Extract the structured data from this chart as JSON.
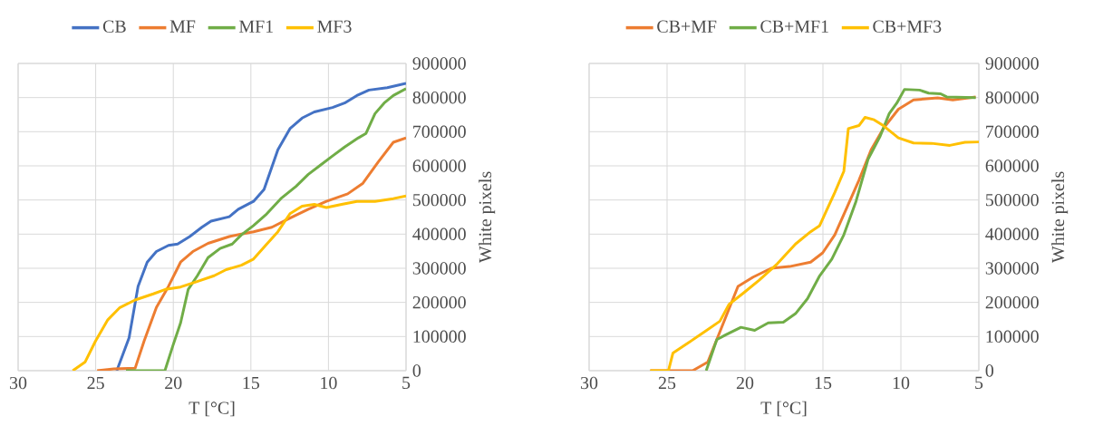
{
  "chart_data": [
    {
      "type": "line",
      "xlabel": "T [°C]",
      "ylabel": "White pixels",
      "xlim": [
        30,
        5
      ],
      "ylim": [
        0,
        900000
      ],
      "xticks": [
        30,
        25,
        20,
        15,
        10,
        5
      ],
      "yticks": [
        0,
        100000,
        200000,
        300000,
        400000,
        500000,
        600000,
        700000,
        800000,
        900000
      ],
      "grid": true,
      "legend": "top",
      "series": [
        {
          "name": "CB",
          "color": "#4472c4",
          "x": [
            23.64,
            22.85,
            22.27,
            21.68,
            21.09,
            20.31,
            19.72,
            18.94,
            18.16,
            17.57,
            16.39,
            15.81,
            14.83,
            14.15,
            13.26,
            12.48,
            11.7,
            10.91,
            9.74,
            8.96,
            8.17,
            7.39,
            6.21,
            5
          ],
          "values": [
            0,
            96000,
            247000,
            318000,
            349000,
            367000,
            371000,
            393000,
            420000,
            438000,
            451000,
            473000,
            496000,
            531000,
            647000,
            709000,
            740000,
            758000,
            771000,
            784000,
            806000,
            822000,
            829000,
            842000
          ]
        },
        {
          "name": "MF",
          "color": "#ed7d31",
          "x": [
            24.91,
            23.83,
            22.46,
            21.88,
            21.09,
            20.31,
            19.53,
            18.74,
            17.76,
            16.39,
            15.61,
            14.83,
            13.65,
            12.48,
            11.3,
            10.13,
            8.76,
            7.78,
            6.8,
            5.82,
            5
          ],
          "values": [
            0,
            5000,
            7000,
            87000,
            185000,
            247000,
            318000,
            349000,
            373000,
            393000,
            400000,
            407000,
            420000,
            447000,
            473000,
            496000,
            518000,
            549000,
            611000,
            669000,
            682000
          ]
        },
        {
          "name": "MF1",
          "color": "#70ad47",
          "x": [
            23.05,
            20.54,
            20.02,
            19.53,
            19.04,
            18.45,
            17.76,
            16.98,
            16.2,
            15.61,
            14.83,
            14.05,
            13.07,
            12.09,
            11.3,
            10.52,
            9.74,
            8.96,
            8.07,
            7.58,
            7.0,
            6.41,
            5.82,
            5
          ],
          "values": [
            0,
            0,
            74000,
            140000,
            238000,
            278000,
            331000,
            358000,
            371000,
            398000,
            425000,
            456000,
            504000,
            540000,
            575000,
            602000,
            629000,
            655000,
            682000,
            695000,
            753000,
            784000,
            806000,
            826000
          ]
        },
        {
          "name": "MF3",
          "color": "#ffc000",
          "x": [
            26.48,
            25.69,
            25.01,
            24.22,
            23.44,
            22.46,
            21.29,
            20.51,
            19.53,
            18.55,
            17.37,
            16.59,
            15.61,
            14.83,
            14.05,
            13.26,
            12.48,
            11.7,
            10.91,
            10.13,
            9.15,
            8.17,
            7.0,
            5.82,
            5
          ],
          "values": [
            0,
            25000,
            87000,
            149000,
            185000,
            207000,
            225000,
            238000,
            245000,
            260000,
            278000,
            296000,
            309000,
            327000,
            367000,
            407000,
            460000,
            482000,
            487000,
            478000,
            487000,
            496000,
            496000,
            504000,
            512000
          ]
        }
      ]
    },
    {
      "type": "line",
      "xlabel": "T [°C]",
      "ylabel": "White pixels",
      "xlim": [
        30,
        5
      ],
      "ylim": [
        0,
        900000
      ],
      "xticks": [
        30,
        25,
        20,
        15,
        10,
        5
      ],
      "yticks": [
        0,
        100000,
        200000,
        300000,
        400000,
        500000,
        600000,
        700000,
        800000,
        900000
      ],
      "grid": true,
      "legend": "top",
      "series": [
        {
          "name": "CB+MF",
          "color": "#ed7d31",
          "x": [
            26.08,
            23.36,
            22.39,
            21.61,
            20.45,
            19.48,
            18.32,
            17.15,
            15.79,
            15.02,
            14.24,
            13.46,
            12.69,
            11.91,
            11.13,
            10.16,
            9.19,
            7.64,
            6.67,
            5.2
          ],
          "values": [
            0,
            0,
            25000,
            114000,
            247000,
            274000,
            300000,
            305000,
            318000,
            345000,
            398000,
            478000,
            558000,
            647000,
            709000,
            766000,
            793000,
            799000,
            793000,
            802000
          ]
        },
        {
          "name": "CB+MF1",
          "color": "#70ad47",
          "x": [
            22.49,
            21.81,
            21.23,
            20.26,
            19.38,
            18.51,
            17.54,
            16.76,
            15.99,
            15.21,
            14.43,
            13.66,
            12.88,
            12.1,
            11.33,
            10.75,
            10.26,
            9.77,
            8.8,
            8.22,
            7.45,
            7.06,
            5.2
          ],
          "values": [
            0,
            91000,
            105000,
            127000,
            118000,
            140000,
            142000,
            167000,
            211000,
            278000,
            327000,
            398000,
            496000,
            620000,
            687000,
            753000,
            784000,
            824000,
            822000,
            813000,
            811000,
            802000,
            800000
          ]
        },
        {
          "name": "CB+MF3",
          "color": "#ffc000",
          "x": [
            26.08,
            24.91,
            24.62,
            23.75,
            22.59,
            21.61,
            21.03,
            20.06,
            19.09,
            17.93,
            16.76,
            15.79,
            15.21,
            14.82,
            14.24,
            13.66,
            13.37,
            12.69,
            12.3,
            11.72,
            11.13,
            10.16,
            9.19,
            8.03,
            6.86,
            5.89,
            5
          ],
          "values": [
            0,
            0,
            52000,
            78000,
            114000,
            145000,
            194000,
            229000,
            265000,
            313000,
            371000,
            407000,
            425000,
            464000,
            522000,
            584000,
            709000,
            718000,
            742000,
            735000,
            718000,
            682000,
            667000,
            666000,
            660000,
            669000,
            670000
          ]
        }
      ]
    }
  ]
}
